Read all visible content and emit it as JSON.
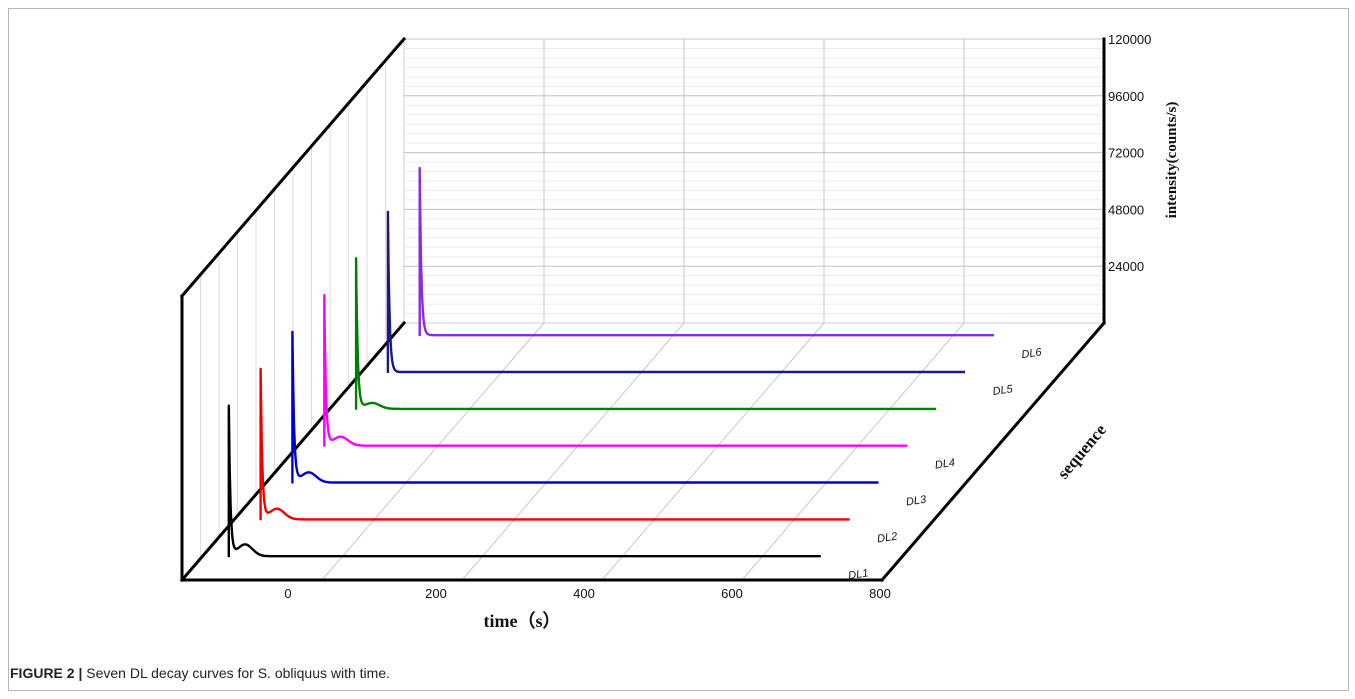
{
  "figure": {
    "label": "FIGURE 2 |",
    "text": "Seven DL decay curves for S. obliquus with time."
  },
  "chart_data": {
    "type": "line",
    "subtype": "3d-waterfall",
    "xlabel": "time（s）",
    "ylabel": "intensity(counts/s)",
    "zlabel": "sequence",
    "x_ticks": [
      "0",
      "200",
      "400",
      "600",
      "800"
    ],
    "y_ticks": [
      "24000",
      "48000",
      "72000",
      "96000",
      "120000"
    ],
    "xlim": [
      0,
      800
    ],
    "ylim": [
      0,
      120000
    ],
    "grid": true,
    "series": [
      {
        "name": "DL6",
        "color": "#8a2be2",
        "peak": 71000,
        "hump": 0,
        "baseline": 400
      },
      {
        "name": "DL5",
        "color": "#1a1a80",
        "peak": 68000,
        "hump": 0,
        "baseline": 400
      },
      {
        "name": "",
        "color": "#008000",
        "peak": 64000,
        "hump": 2500,
        "baseline": 400
      },
      {
        "name": "DL4",
        "color": "#ff00ff",
        "peak": 64000,
        "hump": 3800,
        "baseline": 400
      },
      {
        "name": "DL3",
        "color": "#0000cd",
        "peak": 64000,
        "hump": 4300,
        "baseline": 400
      },
      {
        "name": "DL2",
        "color": "#ee0000",
        "peak": 64000,
        "hump": 4500,
        "baseline": 400
      },
      {
        "name": "DL1",
        "color": "#000000",
        "peak": 64000,
        "hump": 5000,
        "baseline": 400
      }
    ]
  }
}
